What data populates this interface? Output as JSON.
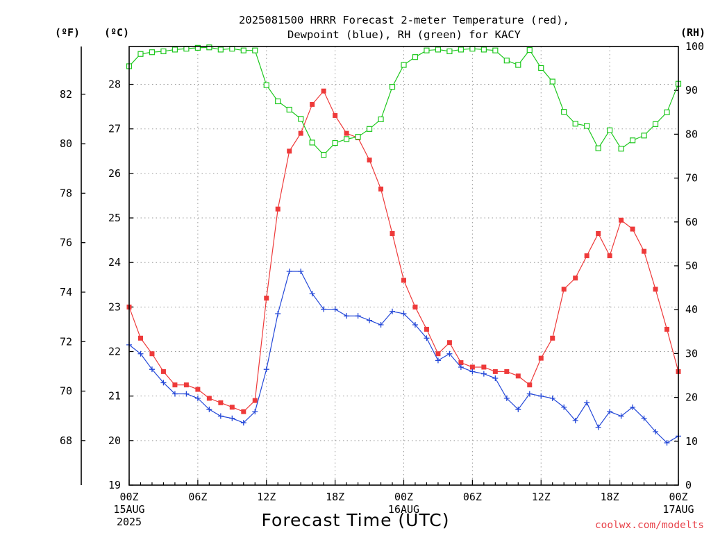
{
  "chart_data": {
    "type": "line",
    "title_line1": "2025081500 HRRR Forecast 2-meter Temperature (red),",
    "title_line2": "Dewpoint (blue), RH (green) for KACY",
    "xlabel": "Forecast Time (UTC)",
    "credit": "coolwx.com/modelts",
    "units": {
      "far": "(ºF)",
      "cel": "(ºC)",
      "rh": "(RH)"
    },
    "hours": [
      0,
      1,
      2,
      3,
      4,
      5,
      6,
      7,
      8,
      9,
      10,
      11,
      12,
      13,
      14,
      15,
      16,
      17,
      18,
      19,
      20,
      21,
      22,
      23,
      24,
      25,
      26,
      27,
      28,
      29,
      30,
      31,
      32,
      33,
      34,
      35,
      36,
      37,
      38,
      39,
      40,
      41,
      42,
      43,
      44,
      45,
      46,
      47,
      48
    ],
    "x_ticks": [
      {
        "hour": 0,
        "lines": [
          "00Z",
          "15AUG",
          "2025"
        ]
      },
      {
        "hour": 6,
        "lines": [
          "06Z"
        ]
      },
      {
        "hour": 12,
        "lines": [
          "12Z"
        ]
      },
      {
        "hour": 18,
        "lines": [
          "18Z"
        ]
      },
      {
        "hour": 24,
        "lines": [
          "00Z",
          "16AUG"
        ]
      },
      {
        "hour": 30,
        "lines": [
          "06Z"
        ]
      },
      {
        "hour": 36,
        "lines": [
          "12Z"
        ]
      },
      {
        "hour": 42,
        "lines": [
          "18Z"
        ]
      },
      {
        "hour": 48,
        "lines": [
          "00Z",
          "17AUG"
        ]
      }
    ],
    "y_celsius": {
      "range": [
        19,
        28.85
      ],
      "ticks": [
        19,
        20,
        21,
        22,
        23,
        24,
        25,
        26,
        27,
        28
      ]
    },
    "y_fahrenheit": {
      "ticks": [
        68,
        70,
        72,
        74,
        76,
        78,
        80,
        82
      ]
    },
    "y_rh": {
      "range": [
        0,
        100
      ],
      "ticks": [
        0,
        10,
        20,
        30,
        40,
        50,
        60,
        70,
        80,
        90,
        100
      ]
    },
    "grid": true,
    "series": [
      {
        "key": "temperature",
        "color": "#ee3a3a",
        "marker": "filled-square",
        "axis": "celsius",
        "values": [
          23.0,
          22.3,
          21.95,
          21.55,
          21.25,
          21.25,
          21.15,
          20.95,
          20.85,
          20.75,
          20.65,
          20.9,
          23.2,
          25.2,
          26.5,
          26.9,
          27.55,
          27.85,
          27.3,
          26.9,
          26.8,
          26.3,
          25.65,
          24.65,
          23.6,
          23.0,
          22.5,
          21.95,
          22.2,
          21.75,
          21.65,
          21.65,
          21.55,
          21.55,
          21.45,
          21.25,
          21.85,
          22.3,
          23.4,
          23.65,
          24.15,
          24.65,
          24.15,
          24.95,
          24.75,
          24.25,
          23.4,
          22.5,
          21.55
        ]
      },
      {
        "key": "dewpoint",
        "color": "#2448d8",
        "marker": "plus",
        "axis": "celsius",
        "values": [
          22.15,
          21.95,
          21.6,
          21.3,
          21.05,
          21.05,
          20.95,
          20.7,
          20.55,
          20.5,
          20.4,
          20.65,
          21.6,
          22.85,
          23.8,
          23.8,
          23.3,
          22.95,
          22.95,
          22.8,
          22.8,
          22.7,
          22.6,
          22.9,
          22.85,
          22.6,
          22.3,
          21.8,
          21.95,
          21.65,
          21.55,
          21.5,
          21.4,
          20.95,
          20.7,
          21.05,
          21.0,
          20.95,
          20.75,
          20.45,
          20.85,
          20.3,
          20.65,
          20.55,
          20.75,
          20.5,
          20.2,
          19.95,
          20.1
        ]
      },
      {
        "key": "rh",
        "color": "#1ec81e",
        "marker": "open-square",
        "axis": "rh",
        "values": [
          95.5,
          98.3,
          98.7,
          98.9,
          99.3,
          99.5,
          99.7,
          99.8,
          99.3,
          99.5,
          99.1,
          99.1,
          91.2,
          87.5,
          85.6,
          83.5,
          78.1,
          75.3,
          78.0,
          78.9,
          79.4,
          81.2,
          83.4,
          90.8,
          95.8,
          97.6,
          99.1,
          99.3,
          98.9,
          99.3,
          99.5,
          99.3,
          99.1,
          96.8,
          95.8,
          99.2,
          95.1,
          92.0,
          85.1,
          82.4,
          81.9,
          76.8,
          80.9,
          76.7,
          78.6,
          79.7,
          82.3,
          85.0,
          91.5
        ]
      }
    ]
  }
}
